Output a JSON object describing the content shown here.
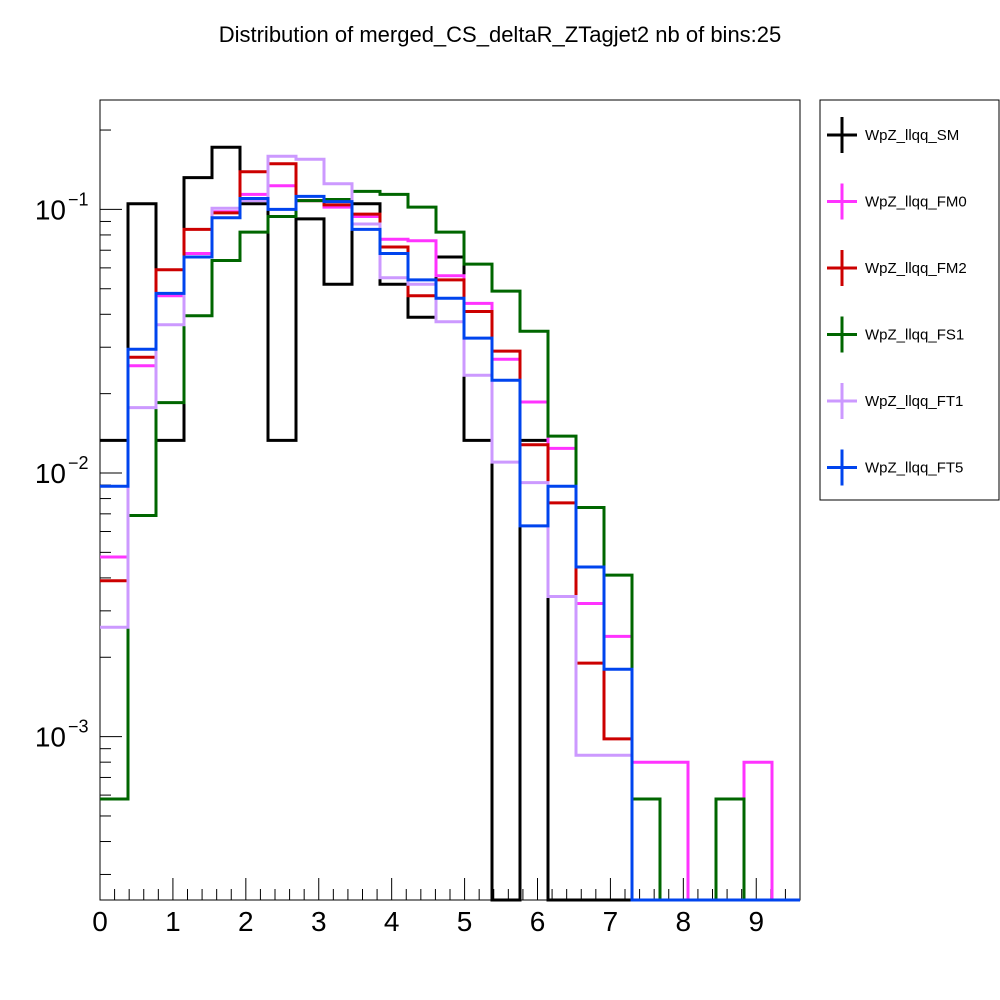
{
  "chart_data": {
    "type": "step-histogram",
    "title": "Distribution of merged_CS_deltaR_ZTagjet2 nb of bins:25",
    "xlabel": "",
    "ylabel": "",
    "xlim": [
      0,
      9.6
    ],
    "ylim": [
      0.00024,
      0.26
    ],
    "yscale": "log",
    "bins": 25,
    "bin_edges": [
      0,
      0.384,
      0.768,
      1.152,
      1.536,
      1.92,
      2.304,
      2.688,
      3.072,
      3.456,
      3.84,
      4.224,
      4.608,
      4.992,
      5.376,
      5.76,
      6.144,
      6.528,
      6.912,
      7.296,
      7.68,
      8.064,
      8.448,
      8.832,
      9.216,
      9.6
    ],
    "x_ticks": [
      "0",
      "1",
      "2",
      "3",
      "4",
      "5",
      "6",
      "7",
      "8",
      "9"
    ],
    "x_tick_values": [
      0,
      1,
      2,
      3,
      4,
      5,
      6,
      7,
      8,
      9
    ],
    "y_ticks": [
      {
        "value": 0.1,
        "base": "10",
        "exp": "−1"
      },
      {
        "value": 0.01,
        "base": "10",
        "exp": "−2"
      },
      {
        "value": 0.001,
        "base": "10",
        "exp": "−3"
      }
    ],
    "legend_position": "right",
    "series": [
      {
        "name": "WpZ_llqq_SM",
        "color": "#000000",
        "values": [
          0.0133,
          0.105,
          0.0133,
          0.132,
          0.172,
          0.105,
          0.0133,
          0.092,
          0.052,
          0.105,
          0.052,
          0.039,
          0.066,
          0.0133,
          0.00024,
          0.0133,
          0.00024,
          0,
          0,
          0,
          0,
          0,
          0,
          0,
          0
        ]
      },
      {
        "name": "WpZ_llqq_FM0",
        "color": "#ff33ff",
        "values": [
          0.0048,
          0.0255,
          0.047,
          0.068,
          0.098,
          0.114,
          0.123,
          0.108,
          0.102,
          0.094,
          0.077,
          0.076,
          0.056,
          0.044,
          0.027,
          0.0186,
          0.0124,
          0.0032,
          0.0024,
          0.0008,
          0.0008,
          0,
          0,
          0.0008,
          0
        ]
      },
      {
        "name": "WpZ_llqq_FM2",
        "color": "#cc0000",
        "values": [
          0.0039,
          0.0275,
          0.059,
          0.084,
          0.097,
          0.139,
          0.149,
          0.108,
          0.104,
          0.096,
          0.072,
          0.047,
          0.054,
          0.041,
          0.029,
          0.0128,
          0.0077,
          0.0019,
          0.00098,
          0,
          0,
          0,
          0,
          0,
          0
        ]
      },
      {
        "name": "WpZ_llqq_FS1",
        "color": "#006600",
        "values": [
          0.00058,
          0.0069,
          0.0185,
          0.0395,
          0.064,
          0.082,
          0.094,
          0.108,
          0.109,
          0.117,
          0.114,
          0.102,
          0.082,
          0.062,
          0.049,
          0.0345,
          0.0138,
          0.0074,
          0.0041,
          0.00058,
          0,
          0,
          0.00058,
          0,
          0
        ]
      },
      {
        "name": "WpZ_llqq_FT1",
        "color": "#cc99ff",
        "values": [
          0.0026,
          0.0177,
          0.0365,
          0.066,
          0.101,
          0.108,
          0.159,
          0.155,
          0.125,
          0.088,
          0.055,
          0.052,
          0.0375,
          0.0235,
          0.011,
          0.0092,
          0.0034,
          0.00085,
          0.00085,
          0,
          0,
          0,
          0,
          0,
          0
        ]
      },
      {
        "name": "WpZ_llqq_FT5",
        "color": "#0044ee",
        "values": [
          0.0089,
          0.0295,
          0.048,
          0.066,
          0.093,
          0.11,
          0.1,
          0.112,
          0.107,
          0.084,
          0.068,
          0.054,
          0.046,
          0.0325,
          0.0225,
          0.0063,
          0.0089,
          0.0044,
          0.0018,
          0,
          0,
          0,
          0,
          0,
          0
        ]
      }
    ]
  }
}
